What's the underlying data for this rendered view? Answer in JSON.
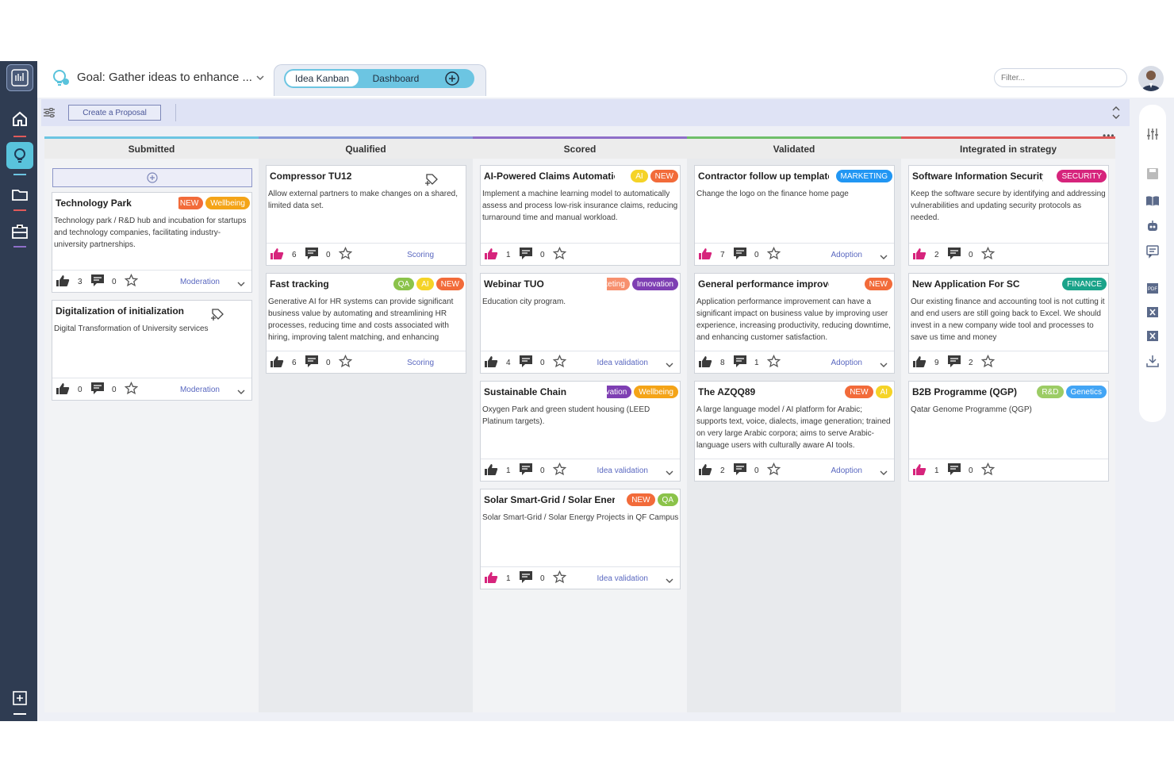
{
  "header": {
    "goal_title": "Goal: Gather ideas to enhance ...",
    "tabs": [
      {
        "label": "Idea Kanban"
      },
      {
        "label": "Dashboard"
      }
    ],
    "filter_placeholder": "Filter..."
  },
  "toolbar": {
    "create_label": "Create a Proposal"
  },
  "columns": [
    {
      "title": "Submitted",
      "accent": "#6cc5e2",
      "cards": [
        {
          "title": "Technology Park",
          "tags": [
            {
              "label": "NEW",
              "color": "#f26b3a"
            },
            {
              "label": "Wellbeing",
              "color": "#f4a418"
            }
          ],
          "desc": "Technology park / R&D hub and incubation for startups and technology companies, facilitating industry-university partnerships.",
          "likes": "3",
          "comments": "0",
          "stage": "Moderation",
          "like_color": "#3a3a3a"
        },
        {
          "title": "Digitalization of initialization",
          "tags": [],
          "desc": "Digital Transformation of University services",
          "likes": "0",
          "comments": "0",
          "stage": "Moderation",
          "like_color": "#3a3a3a"
        }
      ]
    },
    {
      "title": "Qualified",
      "accent": "#8a9ad8",
      "cards": [
        {
          "title": "Compressor TU12",
          "tags": [],
          "desc": "Allow external partners to make changes on a shared, limited data set.",
          "likes": "6",
          "comments": "0",
          "stage": "Scoring",
          "like_color": "#d6247c"
        },
        {
          "title": "Fast tracking",
          "tags": [
            {
              "label": "QA",
              "color": "#8bc34a"
            },
            {
              "label": "AI",
              "color": "#f5d327"
            },
            {
              "label": "NEW",
              "color": "#f26b3a"
            }
          ],
          "desc": "Generative AI for HR systems can provide significant business value by automating and streamlining HR processes, reducing time and costs associated with hiring, improving talent matching, and enhancing",
          "likes": "6",
          "comments": "0",
          "stage": "Scoring",
          "like_color": "#3a3a3a"
        }
      ]
    },
    {
      "title": "Scored",
      "accent": "#8e6fc9",
      "cards": [
        {
          "title": "AI-Powered Claims Automation",
          "tags": [
            {
              "label": "AI",
              "color": "#f5d327"
            },
            {
              "label": "NEW",
              "color": "#f26b3a"
            }
          ],
          "desc": "Implement a machine learning model to automatically assess and process low-risk insurance claims, reducing turnaround time and manual workload.",
          "likes": "1",
          "comments": "0",
          "stage": "",
          "like_color": "#d6247c"
        },
        {
          "title": "Webinar TUO",
          "tags": [
            {
              "label": "Marketing",
              "color": "#f7906e"
            },
            {
              "label": "Innovation",
              "color": "#7e3fb3"
            }
          ],
          "desc": "Education city program.",
          "likes": "4",
          "comments": "0",
          "stage": "Idea validation",
          "like_color": "#3a3a3a"
        },
        {
          "title": "Sustainable Chain",
          "tags": [
            {
              "label": "Innovation",
              "color": "#7e3fb3"
            },
            {
              "label": "Wellbeing",
              "color": "#f4a418"
            }
          ],
          "desc": "Oxygen Park and green student housing (LEED Platinum targets).",
          "likes": "1",
          "comments": "0",
          "stage": "Idea validation",
          "like_color": "#3a3a3a"
        },
        {
          "title": "Solar Smart-Grid / Solar Energy",
          "tags": [
            {
              "label": "NEW",
              "color": "#f26b3a"
            },
            {
              "label": "QA",
              "color": "#8bc34a"
            }
          ],
          "desc": "Solar Smart-Grid / Solar Energy Projects in QF Campus",
          "likes": "1",
          "comments": "0",
          "stage": "Idea validation",
          "like_color": "#d6247c"
        }
      ]
    },
    {
      "title": "Validated",
      "accent": "#6fbf6a",
      "cards": [
        {
          "title": "Contractor follow up template",
          "tags": [
            {
              "label": "MARKETING",
              "color": "#2196f3"
            }
          ],
          "desc": "Change the logo on the finance home page",
          "likes": "7",
          "comments": "0",
          "stage": "Adoption",
          "like_color": "#d6247c"
        },
        {
          "title": "General performance improvement",
          "tags": [
            {
              "label": "NEW",
              "color": "#f26b3a"
            }
          ],
          "desc": "Application performance improvement can have a significant impact on business value by improving user experience, increasing productivity, reducing downtime, and enhancing customer satisfaction.",
          "likes": "8",
          "comments": "1",
          "stage": "Adoption",
          "like_color": "#3a3a3a"
        },
        {
          "title": "The AZQQ89",
          "tags": [
            {
              "label": "NEW",
              "color": "#f26b3a"
            },
            {
              "label": "AI",
              "color": "#f5d327"
            }
          ],
          "desc": "A large language model / AI platform for Arabic; supports text, voice, dialects, image generation; trained on very large Arabic corpora; aims to serve Arabic-language users with culturally aware AI tools.",
          "likes": "2",
          "comments": "0",
          "stage": "Adoption",
          "like_color": "#3a3a3a"
        }
      ]
    },
    {
      "title": "Integrated in strategy",
      "accent": "#e05a5a",
      "cards": [
        {
          "title": "Software Information Security",
          "tags": [
            {
              "label": "SECURITY",
              "color": "#d6247c"
            }
          ],
          "desc": "Keep the software secure by identifying and addressing vulnerabilities and updating security protocols as needed.",
          "likes": "2",
          "comments": "0",
          "stage": "",
          "like_color": "#d6247c"
        },
        {
          "title": "New Application For SC",
          "tags": [
            {
              "label": "FINANCE",
              "color": "#1aa38a"
            }
          ],
          "desc": "Our existing finance and accounting tool is not cutting it and end users are still going back to Excel. We should invest in a new company wide tool and processes to save us time and money",
          "likes": "9",
          "comments": "2",
          "stage": "",
          "like_color": "#3a3a3a"
        },
        {
          "title": "B2B Programme (QGP)",
          "tags": [
            {
              "label": "R&D",
              "color": "#9ccc65"
            },
            {
              "label": "Genetics",
              "color": "#42a5f5"
            }
          ],
          "desc": "Qatar Genome Programme (QGP)",
          "likes": "1",
          "comments": "0",
          "stage": "",
          "like_color": "#d6247c"
        }
      ]
    }
  ]
}
